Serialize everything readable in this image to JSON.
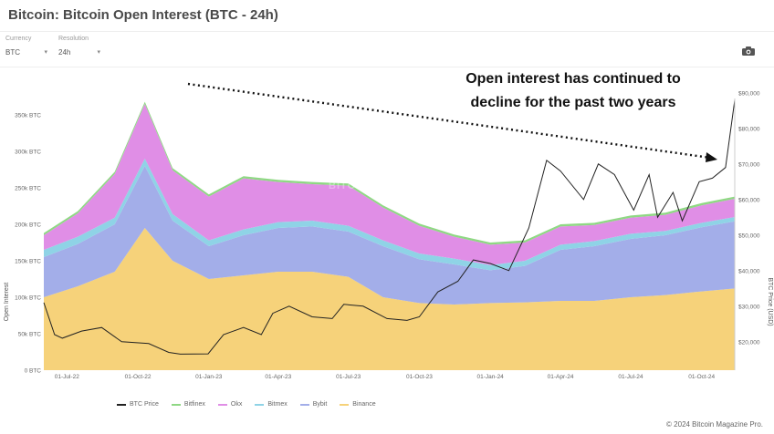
{
  "header": {
    "title": "Bitcoin: Bitcoin Open Interest (BTC - 24h)"
  },
  "controls": {
    "currency_label": "Currency",
    "currency_value": "BTC",
    "resolution_label": "Resolution",
    "resolution_value": "24h"
  },
  "icons": {
    "camera": "camera-icon",
    "chevron": "chevron-down-icon"
  },
  "annotation": {
    "line1": "Open interest has continued to",
    "line2": "decline for the past two years"
  },
  "watermark": "BITCOIN MAGAZINE PRO",
  "copyright": "© 2024 Bitcoin Magazine Pro.",
  "colors": {
    "binance": "#f6d27a",
    "bybit": "#a3aee9",
    "bitmex": "#8fd3e6",
    "okx": "#e08ee6",
    "bitfinex": "#8fd884",
    "price": "#222222"
  },
  "chart_data": {
    "type": "area",
    "title": "Bitcoin: Bitcoin Open Interest (BTC - 24h)",
    "ylabel": "Open Interest",
    "y2label": "BTC Price (USD)",
    "ylim": [
      0,
      390000
    ],
    "y2lim": [
      12000,
      92000
    ],
    "y_ticks": [
      "0 BTC",
      "50k BTC",
      "100k BTC",
      "150k BTC",
      "200k BTC",
      "250k BTC",
      "300k BTC",
      "350k BTC"
    ],
    "y_tick_values": [
      0,
      50000,
      100000,
      150000,
      200000,
      250000,
      300000,
      350000
    ],
    "y2_ticks": [
      "$20,000",
      "$30,000",
      "$40,000",
      "$50,000",
      "$60,000",
      "$70,000",
      "$80,000",
      "$90,000"
    ],
    "y2_tick_values": [
      20000,
      30000,
      40000,
      50000,
      60000,
      70000,
      80000,
      90000
    ],
    "x_ticks": [
      "01-Jul-22",
      "01-Oct-22",
      "01-Jan-23",
      "01-Apr-23",
      "01-Jul-23",
      "01-Oct-23",
      "01-Jan-24",
      "01-Apr-24",
      "01-Jul-24",
      "01-Oct-24"
    ],
    "x_tick_dates": [
      "2022-07-01",
      "2022-10-01",
      "2023-01-01",
      "2023-04-01",
      "2023-07-01",
      "2023-10-01",
      "2024-01-01",
      "2024-04-01",
      "2024-07-01",
      "2024-10-01"
    ],
    "x_start": "2022-06-01",
    "x_end": "2024-11-13",
    "series": [
      {
        "name": "Binance",
        "stacked": true,
        "x": [
          "2022-06-01",
          "2022-07-15",
          "2022-09-01",
          "2022-10-10",
          "2022-11-15",
          "2023-01-01",
          "2023-02-15",
          "2023-04-01",
          "2023-05-15",
          "2023-07-01",
          "2023-08-15",
          "2023-10-01",
          "2023-11-15",
          "2024-01-01",
          "2024-02-15",
          "2024-04-01",
          "2024-05-15",
          "2024-07-01",
          "2024-08-15",
          "2024-10-01",
          "2024-11-13"
        ],
        "values": [
          100000,
          115000,
          135000,
          195000,
          150000,
          125000,
          130000,
          135000,
          135000,
          128000,
          100000,
          92000,
          90000,
          92000,
          93000,
          95000,
          95000,
          100000,
          103000,
          108000,
          112000
        ]
      },
      {
        "name": "Bybit",
        "stacked": true,
        "x": [
          "2022-06-01",
          "2022-07-15",
          "2022-09-01",
          "2022-10-10",
          "2022-11-15",
          "2023-01-01",
          "2023-02-15",
          "2023-04-01",
          "2023-05-15",
          "2023-07-01",
          "2023-08-15",
          "2023-10-01",
          "2023-11-15",
          "2024-01-01",
          "2024-02-15",
          "2024-04-01",
          "2024-05-15",
          "2024-07-01",
          "2024-08-15",
          "2024-10-01",
          "2024-11-13"
        ],
        "values": [
          55000,
          58000,
          65000,
          85000,
          55000,
          45000,
          55000,
          60000,
          62000,
          62000,
          70000,
          60000,
          55000,
          45000,
          50000,
          70000,
          75000,
          80000,
          82000,
          88000,
          92000
        ]
      },
      {
        "name": "Bitmex",
        "stacked": true,
        "x": [
          "2022-06-01",
          "2022-07-15",
          "2022-09-01",
          "2022-10-10",
          "2022-11-15",
          "2023-01-01",
          "2023-02-15",
          "2023-04-01",
          "2023-05-15",
          "2023-07-01",
          "2023-08-15",
          "2023-10-01",
          "2023-11-15",
          "2024-01-01",
          "2024-02-15",
          "2024-04-01",
          "2024-05-15",
          "2024-07-01",
          "2024-08-15",
          "2024-10-01",
          "2024-11-13"
        ],
        "values": [
          10000,
          10000,
          9000,
          10000,
          9000,
          8000,
          8000,
          8000,
          8000,
          8000,
          8000,
          8000,
          8000,
          7000,
          7000,
          7000,
          7000,
          7000,
          6000,
          6000,
          6000
        ]
      },
      {
        "name": "Okx",
        "stacked": true,
        "x": [
          "2022-06-01",
          "2022-07-15",
          "2022-09-01",
          "2022-10-10",
          "2022-11-15",
          "2023-01-01",
          "2023-02-15",
          "2023-04-01",
          "2023-05-15",
          "2023-07-01",
          "2023-08-15",
          "2023-10-01",
          "2023-11-15",
          "2024-01-01",
          "2024-02-15",
          "2024-04-01",
          "2024-05-15",
          "2024-07-01",
          "2024-08-15",
          "2024-10-01",
          "2024-11-13"
        ],
        "values": [
          20000,
          32000,
          60000,
          75000,
          60000,
          60000,
          70000,
          55000,
          50000,
          55000,
          45000,
          38000,
          30000,
          28000,
          25000,
          25000,
          22000,
          22000,
          22000,
          24000,
          25000
        ]
      },
      {
        "name": "Bitfinex",
        "stacked": true,
        "x": [
          "2022-06-01",
          "2022-07-15",
          "2022-09-01",
          "2022-10-10",
          "2022-11-15",
          "2023-01-01",
          "2023-02-15",
          "2023-04-01",
          "2023-05-15",
          "2023-07-01",
          "2023-08-15",
          "2023-10-01",
          "2023-11-15",
          "2024-01-01",
          "2024-02-15",
          "2024-04-01",
          "2024-05-15",
          "2024-07-01",
          "2024-08-15",
          "2024-10-01",
          "2024-11-13"
        ],
        "values": [
          3000,
          3000,
          3000,
          3000,
          3000,
          3000,
          3000,
          3000,
          3000,
          3000,
          3000,
          3000,
          3000,
          3000,
          3000,
          3000,
          3000,
          3000,
          3000,
          3000,
          3000
        ]
      },
      {
        "name": "BTC Price",
        "axis": "right",
        "x": [
          "2022-06-01",
          "2022-06-15",
          "2022-06-25",
          "2022-07-20",
          "2022-08-15",
          "2022-09-10",
          "2022-10-15",
          "2022-11-10",
          "2022-11-25",
          "2022-12-31",
          "2023-01-20",
          "2023-02-15",
          "2023-03-10",
          "2023-03-25",
          "2023-04-15",
          "2023-05-15",
          "2023-06-10",
          "2023-06-25",
          "2023-07-20",
          "2023-08-20",
          "2023-09-15",
          "2023-10-01",
          "2023-10-25",
          "2023-11-20",
          "2023-12-10",
          "2024-01-01",
          "2024-01-25",
          "2024-02-20",
          "2024-03-14",
          "2024-04-01",
          "2024-05-01",
          "2024-05-20",
          "2024-06-10",
          "2024-07-05",
          "2024-07-25",
          "2024-08-05",
          "2024-08-25",
          "2024-09-06",
          "2024-09-28",
          "2024-10-15",
          "2024-11-01",
          "2024-11-13"
        ],
        "values": [
          31000,
          22000,
          21000,
          23000,
          24000,
          20000,
          19500,
          17000,
          16500,
          16600,
          22000,
          24000,
          22000,
          28000,
          30000,
          27000,
          26500,
          30500,
          30000,
          26500,
          26000,
          27000,
          34000,
          37000,
          43000,
          42000,
          40000,
          52000,
          71000,
          68000,
          60000,
          70000,
          67000,
          57000,
          67000,
          55000,
          62000,
          54000,
          65000,
          66000,
          69000,
          88000
        ]
      }
    ],
    "legend": [
      "BTC Price",
      "Bitfinex",
      "Okx",
      "Bitmex",
      "Bybit",
      "Binance"
    ],
    "legend_position": "bottom",
    "grid": false
  }
}
